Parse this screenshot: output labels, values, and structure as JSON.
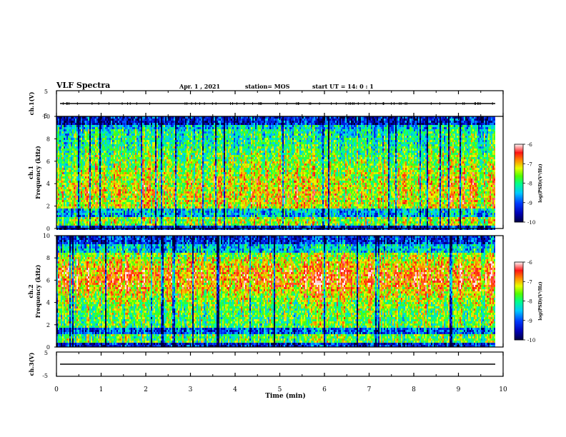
{
  "header": {
    "title": "VLF Spectra",
    "date": "Apr. 1 , 2021",
    "station": "station= MOS",
    "start": "start UT = 14: 0 : 1"
  },
  "xaxis": {
    "label": "Time (min)",
    "ticks": [
      "0",
      "1",
      "2",
      "3",
      "4",
      "5",
      "6",
      "7",
      "8",
      "9",
      "10"
    ],
    "range": [
      0,
      10
    ]
  },
  "panels": {
    "ch1_voltage": {
      "ylabel": "ch.1(V)",
      "ticks": [
        "5",
        "-5"
      ],
      "range": [
        -5,
        5
      ]
    },
    "ch1_spectrum": {
      "ylabel_top": "ch.1",
      "ylabel": "Frequency (kHz)",
      "ticks": [
        "0",
        "2",
        "4",
        "6",
        "8",
        "10"
      ],
      "range": [
        0,
        10
      ]
    },
    "ch2_spectrum": {
      "ylabel_top": "ch.2",
      "ylabel": "Frequency (kHz)",
      "ticks": [
        "0",
        "2",
        "4",
        "6",
        "8",
        "10"
      ],
      "range": [
        0,
        10
      ]
    },
    "ch3_voltage": {
      "ylabel": "ch.3(V)",
      "ticks": [
        "5",
        "-5"
      ],
      "range": [
        -5,
        5
      ]
    }
  },
  "colorbar": {
    "label": "log(PSD)(V²/Hz)",
    "ticks": [
      "-6",
      "-7",
      "-8",
      "-9",
      "-10"
    ],
    "range": [
      -10,
      -6
    ],
    "colors": [
      "#000080",
      "#0000ff",
      "#00ffff",
      "#00ff00",
      "#ffff00",
      "#ff0000",
      "#ffffff"
    ]
  },
  "chart_data": [
    {
      "type": "line",
      "title": "ch.1(V)",
      "x_range": [
        0,
        10
      ],
      "ylim": [
        -5,
        5
      ],
      "xlabel": "",
      "ylabel": "ch.1(V)",
      "approx_level": 0
    },
    {
      "type": "heatmap",
      "title": "ch.1",
      "xlabel": "",
      "ylabel": "Frequency (kHz)",
      "x_range": [
        0,
        9.83
      ],
      "ylim": [
        0,
        10
      ],
      "colorscale_range": [
        -10,
        -6
      ]
    },
    {
      "type": "heatmap",
      "title": "ch.2",
      "xlabel": "Time (min)",
      "ylabel": "Frequency (kHz)",
      "x_range": [
        0,
        9.83
      ],
      "ylim": [
        0,
        10
      ],
      "colorscale_range": [
        -10,
        -6
      ]
    },
    {
      "type": "line",
      "title": "ch.3(V)",
      "x_range": [
        0,
        10
      ],
      "ylim": [
        -5,
        5
      ],
      "xlabel": "Time (min)",
      "ylabel": "ch.3(V)",
      "approx_level": 0
    }
  ]
}
